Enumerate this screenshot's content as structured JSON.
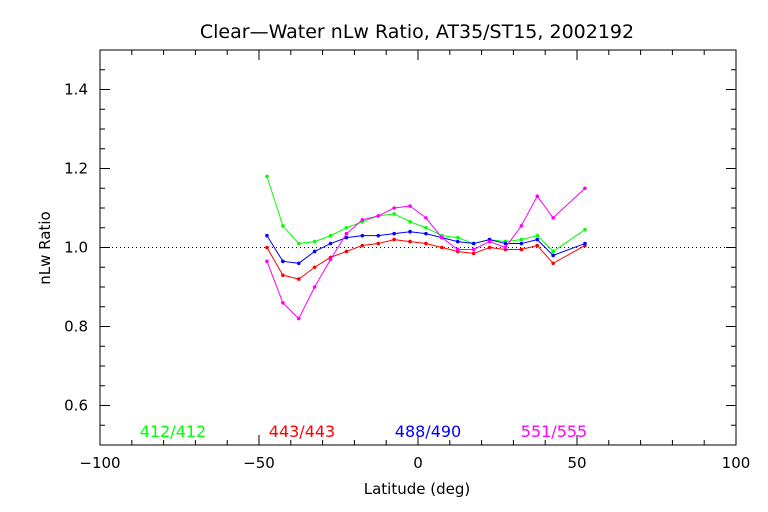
{
  "chart_data": {
    "type": "line",
    "title": "Clear—Water nLw Ratio, AT35/ST15, 2002192",
    "xlabel": "Latitude (deg)",
    "ylabel": "nLw Ratio",
    "xlim": [
      -100,
      100
    ],
    "ylim": [
      0.5,
      1.5
    ],
    "x_ticks": [
      -100,
      -50,
      0,
      50,
      100
    ],
    "x_tick_labels": [
      "−100",
      "−50",
      "0",
      "50",
      "100"
    ],
    "y_ticks": [
      0.6,
      0.8,
      1.0,
      1.2,
      1.4
    ],
    "y_tick_labels": [
      "0.6",
      "0.8",
      "1.0",
      "1.2",
      "1.4"
    ],
    "reference_line": {
      "y": 1.0,
      "style": "dotted"
    },
    "grid": false,
    "legend_position": "bottom inside plot",
    "x": [
      -47.5,
      -42.5,
      -37.5,
      -32.5,
      -27.5,
      -22.5,
      -17.5,
      -12.5,
      -7.5,
      -2.5,
      2.5,
      7.5,
      12.5,
      17.5,
      22.5,
      27.5,
      32.5,
      37.5,
      42.5,
      52.5
    ],
    "series": [
      {
        "name": "412/412",
        "color": "#00ff00",
        "values": [
          1.18,
          1.055,
          1.01,
          1.015,
          1.03,
          1.05,
          1.065,
          1.08,
          1.085,
          1.065,
          1.05,
          1.03,
          1.025,
          1.01,
          1.02,
          1.015,
          1.02,
          1.03,
          0.99,
          1.045
        ]
      },
      {
        "name": "443/443",
        "color": "#ff0000",
        "values": [
          1.0,
          0.93,
          0.92,
          0.95,
          0.975,
          0.99,
          1.005,
          1.01,
          1.02,
          1.015,
          1.01,
          1.0,
          0.99,
          0.985,
          1.0,
          0.995,
          0.995,
          1.005,
          0.96,
          1.005
        ]
      },
      {
        "name": "488/490",
        "color": "#0000ff",
        "values": [
          1.03,
          0.965,
          0.96,
          0.99,
          1.01,
          1.025,
          1.03,
          1.03,
          1.035,
          1.04,
          1.035,
          1.025,
          1.015,
          1.01,
          1.02,
          1.01,
          1.01,
          1.02,
          0.98,
          1.01
        ]
      },
      {
        "name": "551/555",
        "color": "#ff00ff",
        "values": [
          0.965,
          0.86,
          0.82,
          0.9,
          0.97,
          1.035,
          1.07,
          1.08,
          1.1,
          1.105,
          1.075,
          1.025,
          0.995,
          0.995,
          1.015,
          1.0,
          1.055,
          1.13,
          1.075,
          1.15
        ]
      }
    ]
  }
}
